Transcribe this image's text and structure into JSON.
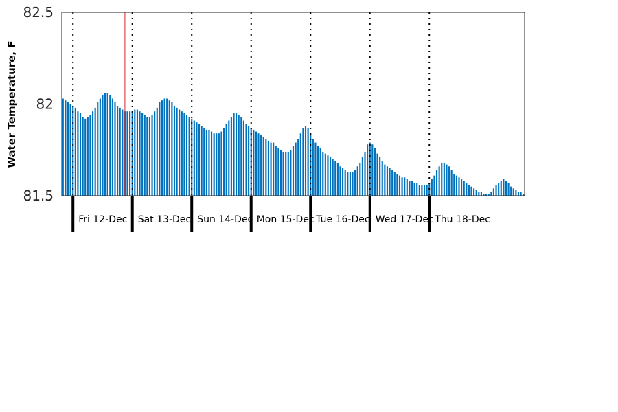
{
  "chart_data": {
    "type": "bar",
    "ylabel": "Water Temperature, F",
    "ylim": [
      81.5,
      82.5
    ],
    "yticks": [
      81.5,
      82,
      82.5
    ],
    "ytick_labels": [
      "81.5",
      "82",
      "82.5"
    ],
    "bar_color": "#0072bd",
    "marker_color": "#d62728",
    "grid": false,
    "x_start": "2014-12-11 20:00",
    "x_step_hours": 1,
    "days": [
      {
        "label": "Fri 12-Dec",
        "start": "2014-12-12 00:00"
      },
      {
        "label": "Sat 13-Dec",
        "start": "2014-12-13 00:00"
      },
      {
        "label": "Sun 14-Dec",
        "start": "2014-12-14 00:00"
      },
      {
        "label": "Mon 15-Dec",
        "start": "2014-12-15 00:00"
      },
      {
        "label": "Tue 16-Dec",
        "start": "2014-12-16 00:00"
      },
      {
        "label": "Wed 17-Dec",
        "start": "2014-12-17 00:00"
      },
      {
        "label": "Thu 18-Dec",
        "start": "2014-12-18 00:00"
      }
    ],
    "current_time": "2014-12-12 21:00",
    "values": [
      82.03,
      82.02,
      82.01,
      82.0,
      81.99,
      81.98,
      81.96,
      81.95,
      81.93,
      81.92,
      81.93,
      81.94,
      81.96,
      81.98,
      82.01,
      82.03,
      82.05,
      82.06,
      82.06,
      82.05,
      82.03,
      82.01,
      81.99,
      81.98,
      81.97,
      81.96,
      81.96,
      81.96,
      81.96,
      81.97,
      81.97,
      81.96,
      81.95,
      81.94,
      81.93,
      81.93,
      81.94,
      81.96,
      81.98,
      82.01,
      82.02,
      82.03,
      82.03,
      82.02,
      82.01,
      81.99,
      81.98,
      81.97,
      81.96,
      81.95,
      81.94,
      81.93,
      81.92,
      81.91,
      81.9,
      81.89,
      81.88,
      81.87,
      81.86,
      81.86,
      81.85,
      81.84,
      81.84,
      81.84,
      81.85,
      81.87,
      81.89,
      81.91,
      81.93,
      81.95,
      81.95,
      81.94,
      81.93,
      81.91,
      81.89,
      81.88,
      81.87,
      81.86,
      81.85,
      81.84,
      81.83,
      81.82,
      81.81,
      81.8,
      81.79,
      81.79,
      81.77,
      81.76,
      81.75,
      81.74,
      81.74,
      81.74,
      81.75,
      81.77,
      81.79,
      81.81,
      81.84,
      81.87,
      81.88,
      81.87,
      81.84,
      81.81,
      81.79,
      81.77,
      81.76,
      81.74,
      81.73,
      81.72,
      81.71,
      81.7,
      81.69,
      81.68,
      81.66,
      81.65,
      81.64,
      81.63,
      81.63,
      81.63,
      81.64,
      81.66,
      81.68,
      81.71,
      81.74,
      81.78,
      81.79,
      81.78,
      81.76,
      81.73,
      81.71,
      81.69,
      81.67,
      81.66,
      81.65,
      81.64,
      81.63,
      81.62,
      81.61,
      81.6,
      81.6,
      81.59,
      81.58,
      81.58,
      81.57,
      81.57,
      81.56,
      81.56,
      81.56,
      81.56,
      81.57,
      81.59,
      81.61,
      81.64,
      81.66,
      81.68,
      81.68,
      81.67,
      81.66,
      81.64,
      81.62,
      81.61,
      81.6,
      81.59,
      81.58,
      81.57,
      81.56,
      81.55,
      81.54,
      81.53,
      81.52,
      81.52,
      81.51,
      81.51,
      81.51,
      81.52,
      81.54,
      81.56,
      81.57,
      81.58,
      81.59,
      81.58,
      81.57,
      81.55,
      81.54,
      81.53,
      81.52,
      81.52,
      81.51
    ]
  }
}
